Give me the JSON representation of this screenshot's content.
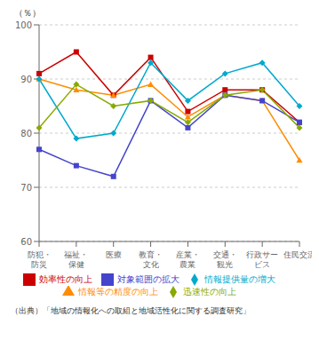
{
  "chart_data": {
    "type": "line",
    "ylabel": "（％）",
    "categories": [
      "防犯・\n防災",
      "福祉・\n保健",
      "医療",
      "教育・\n文化",
      "産業・\n農業",
      "交通・\n観光",
      "行政サー\nビス",
      "住民交流"
    ],
    "series": [
      {
        "name": "効率性の向上",
        "color": "#cc0000",
        "marker": "square",
        "values": [
          91,
          95,
          87,
          94,
          84,
          88,
          88,
          82
        ]
      },
      {
        "name": "情報等の精度の向上",
        "color": "#ff8c00",
        "marker": "triangle",
        "values": [
          90,
          88,
          87,
          89,
          83,
          87,
          86,
          75
        ]
      },
      {
        "name": "情報提供量の増大",
        "color": "#00aacc",
        "marker": "diamond",
        "values": [
          90,
          79,
          80,
          93,
          86,
          91,
          93,
          85
        ]
      },
      {
        "name": "対象範囲の拡大",
        "color": "#4444cc",
        "marker": "square",
        "values": [
          77,
          74,
          72,
          86,
          81,
          87,
          86,
          82
        ]
      },
      {
        "name": "迅速性の向上",
        "color": "#88aa00",
        "marker": "diamond",
        "values": [
          81,
          89,
          85,
          86,
          82,
          87,
          88,
          81
        ]
      }
    ],
    "ylim": [
      60,
      100
    ],
    "yticks": [
      60,
      70,
      80,
      90,
      100
    ],
    "grid": "y",
    "annotations": [
      "（出典）「地域の情報化への取組と地域活性化に関する調査研究」"
    ]
  }
}
